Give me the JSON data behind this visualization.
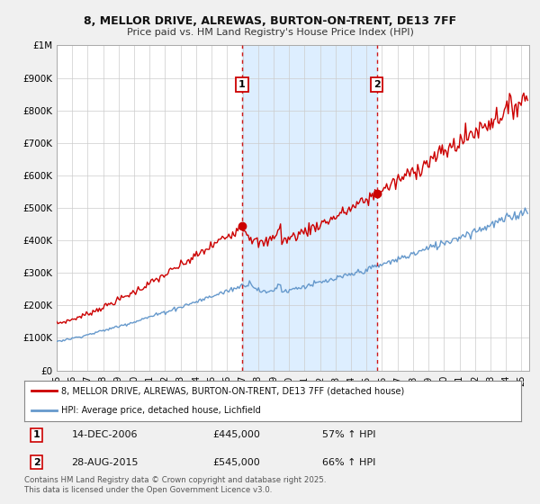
{
  "title1": "8, MELLOR DRIVE, ALREWAS, BURTON-ON-TRENT, DE13 7FF",
  "title2": "Price paid vs. HM Land Registry's House Price Index (HPI)",
  "ylim": [
    0,
    1000000
  ],
  "yticks": [
    0,
    100000,
    200000,
    300000,
    400000,
    500000,
    600000,
    700000,
    800000,
    900000,
    1000000
  ],
  "ytick_labels": [
    "£0",
    "£100K",
    "£200K",
    "£300K",
    "£400K",
    "£500K",
    "£600K",
    "£700K",
    "£800K",
    "£900K",
    "£1M"
  ],
  "xlim_start": 1995.0,
  "xlim_end": 2025.5,
  "xtick_years": [
    1995,
    1996,
    1997,
    1998,
    1999,
    2000,
    2001,
    2002,
    2003,
    2004,
    2005,
    2006,
    2007,
    2008,
    2009,
    2010,
    2011,
    2012,
    2013,
    2014,
    2015,
    2016,
    2017,
    2018,
    2019,
    2020,
    2021,
    2022,
    2023,
    2024,
    2025
  ],
  "xtick_labels": [
    "95",
    "96",
    "97",
    "98",
    "99",
    "00",
    "01",
    "02",
    "03",
    "04",
    "05",
    "06",
    "07",
    "08",
    "09",
    "10",
    "11",
    "12",
    "13",
    "14",
    "15",
    "16",
    "17",
    "18",
    "19",
    "20",
    "21",
    "22",
    "23",
    "24",
    "25"
  ],
  "red_color": "#cc0000",
  "blue_color": "#6699cc",
  "shaded_color": "#ddeeff",
  "vline_color": "#cc0000",
  "marker1_x": 2006.96,
  "marker1_y": 445000,
  "marker2_x": 2015.66,
  "marker2_y": 545000,
  "vline1_x": 2006.96,
  "vline2_x": 2015.66,
  "legend_red": "8, MELLOR DRIVE, ALREWAS, BURTON-ON-TRENT, DE13 7FF (detached house)",
  "legend_blue": "HPI: Average price, detached house, Lichfield",
  "table_row1": [
    "1",
    "14-DEC-2006",
    "£445,000",
    "57% ↑ HPI"
  ],
  "table_row2": [
    "2",
    "28-AUG-2015",
    "£545,000",
    "66% ↑ HPI"
  ],
  "footnote": "Contains HM Land Registry data © Crown copyright and database right 2025.\nThis data is licensed under the Open Government Licence v3.0.",
  "bg_color": "#f0f0f0",
  "plot_bg_color": "#ffffff"
}
